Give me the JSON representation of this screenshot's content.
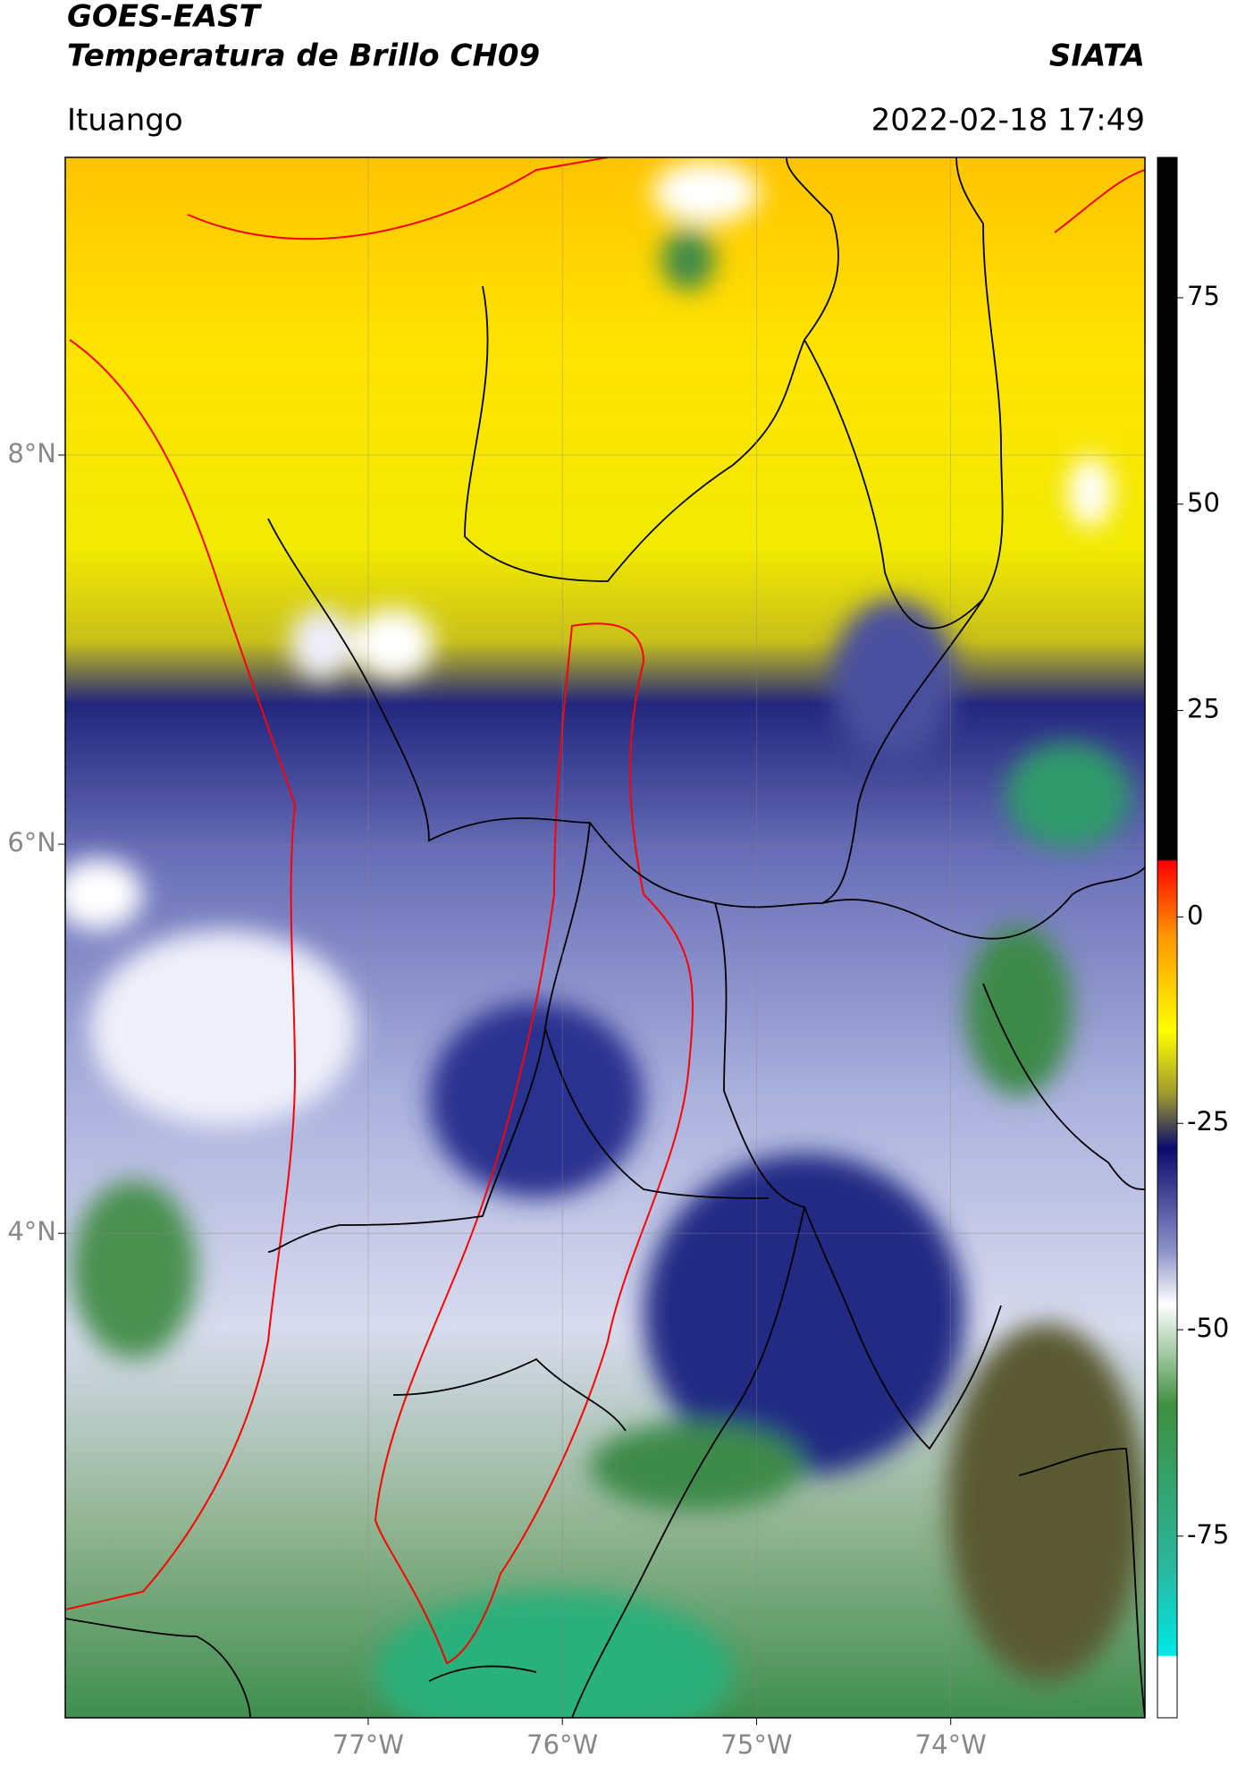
{
  "header": {
    "title": "GOES-EAST",
    "subtitle": "Temperatura de Brillo CH09",
    "brand": "SIATA",
    "location": "Ituango",
    "datetime": "2022-02-18 17:49"
  },
  "map": {
    "lonlim": [
      -78.56,
      -73.0
    ],
    "latlim": [
      1.51,
      9.53
    ],
    "lon_ticks": [
      {
        "value": -77,
        "label": "77°W"
      },
      {
        "value": -76,
        "label": "76°W"
      },
      {
        "value": -75,
        "label": "75°W"
      },
      {
        "value": -74,
        "label": "74°W"
      }
    ],
    "lat_ticks": [
      {
        "value": 8,
        "label": "8°N"
      },
      {
        "value": 6,
        "label": "6°N"
      },
      {
        "value": 4,
        "label": "4°N"
      }
    ]
  },
  "colorbar": {
    "lim": [
      -97,
      92
    ],
    "ticks": [
      75,
      50,
      25,
      0,
      -25,
      -50,
      -75
    ]
  }
}
